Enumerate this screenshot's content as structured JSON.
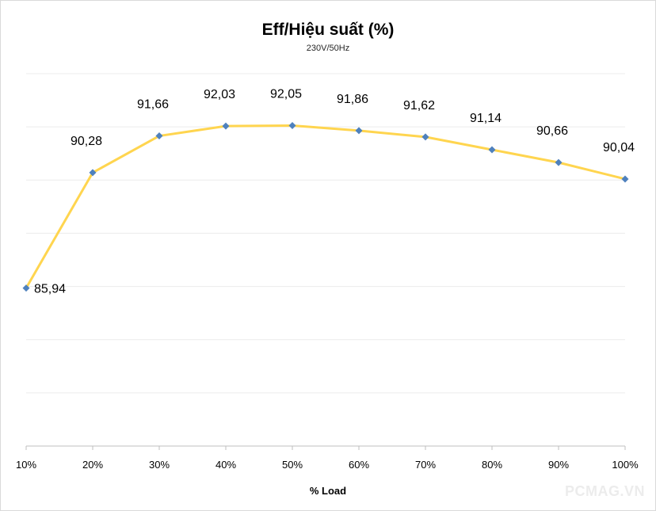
{
  "chart_data": {
    "type": "line",
    "title": "Eff/Hiệu suất (%)",
    "subtitle": "230V/50Hz",
    "xlabel": "% Load",
    "ylabel": "",
    "categories": [
      "10%",
      "20%",
      "30%",
      "40%",
      "50%",
      "60%",
      "70%",
      "80%",
      "90%",
      "100%"
    ],
    "series": [
      {
        "values": [
          85.94,
          90.28,
          91.66,
          92.03,
          92.05,
          91.86,
          91.62,
          91.14,
          90.66,
          90.04
        ],
        "labels": [
          "85,94",
          "90,28",
          "91,66",
          "92,03",
          "92,05",
          "91,86",
          "91,62",
          "91,14",
          "90,66",
          "90,04"
        ],
        "color": "#FFD54F",
        "marker_color": "#4F81BD"
      }
    ],
    "ylim": [
      80,
      94
    ],
    "grid": true,
    "legend": "none"
  },
  "watermark": "PCMAG.VN"
}
